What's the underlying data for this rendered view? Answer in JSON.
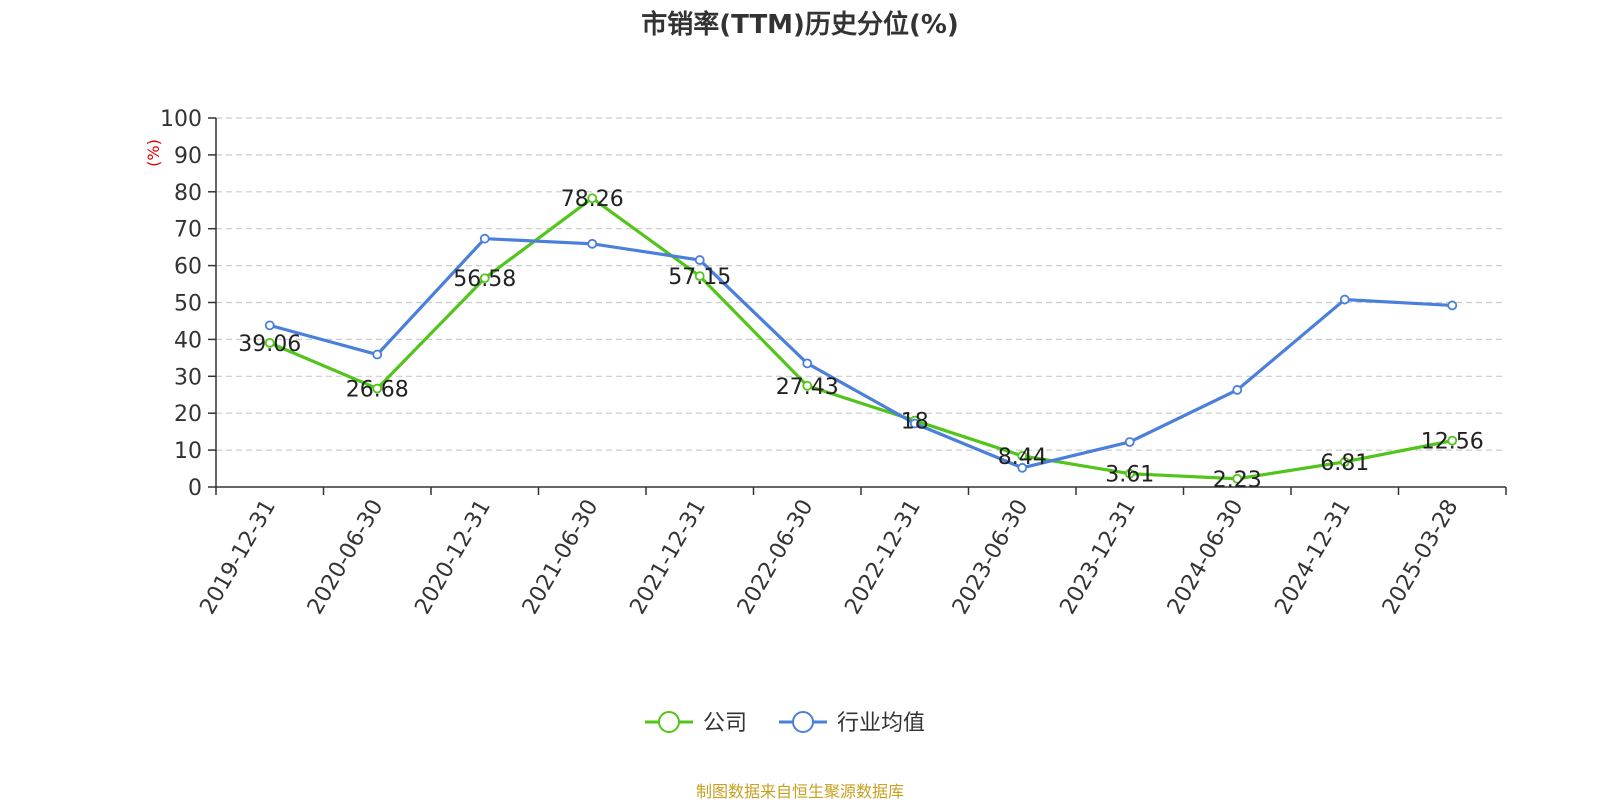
{
  "chart_data": {
    "type": "line",
    "title": "市销率(TTM)历史分位(%)",
    "ylabel": "(%)",
    "ylim": [
      0,
      100
    ],
    "yticks": [
      0,
      10,
      20,
      30,
      40,
      50,
      60,
      70,
      80,
      90,
      100
    ],
    "grid": true,
    "legend_position": "bottom",
    "categories": [
      "2019-12-31",
      "2020-06-30",
      "2020-12-31",
      "2021-06-30",
      "2021-12-31",
      "2022-06-30",
      "2022-12-31",
      "2023-06-30",
      "2023-12-31",
      "2024-06-30",
      "2024-12-31",
      "2025-03-28"
    ],
    "series": [
      {
        "name": "公司",
        "color": "#52c41a",
        "values": [
          39.06,
          26.68,
          56.58,
          78.26,
          57.15,
          27.43,
          18,
          8.44,
          3.61,
          2.23,
          6.81,
          12.56
        ],
        "labels": [
          "39.06",
          "26.68",
          "56.58",
          "78.26",
          "57.15",
          "27.43",
          "18",
          "8.44",
          "3.61",
          "2.23",
          "6.81",
          "12.56"
        ]
      },
      {
        "name": "行业均值",
        "color": "#4a7fdc",
        "values": [
          43.8,
          35.9,
          67.3,
          65.9,
          61.5,
          33.5,
          17.2,
          5.2,
          12.2,
          26.3,
          50.8,
          49.2
        ]
      }
    ]
  },
  "source_note": "制图数据来自恒生聚源数据库"
}
